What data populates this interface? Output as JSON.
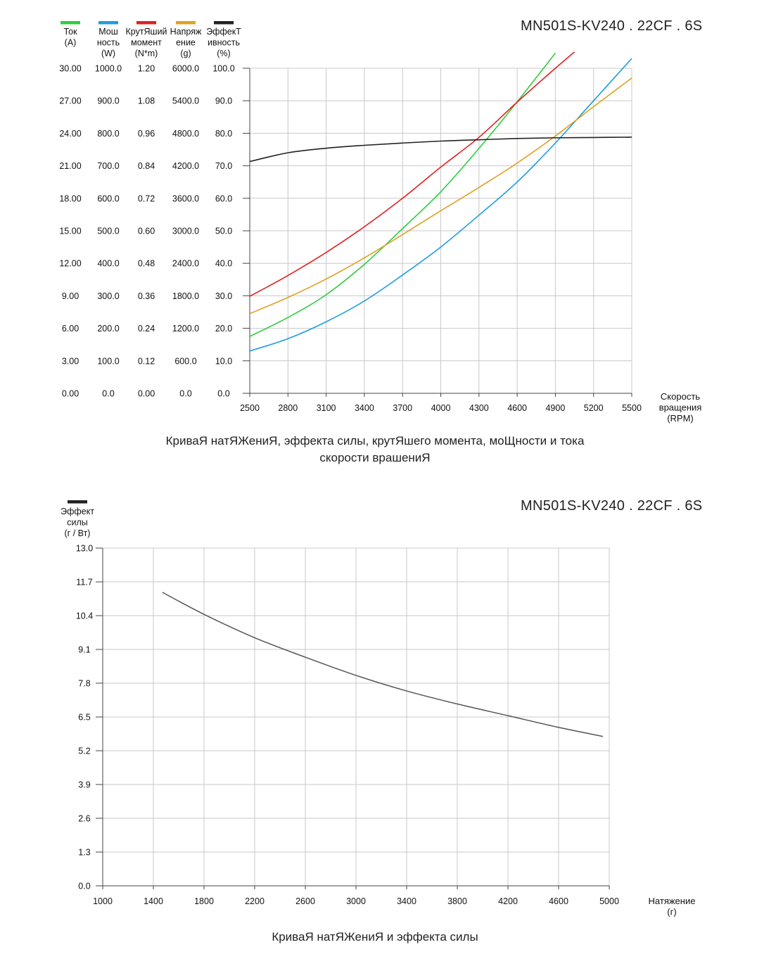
{
  "chart_data": [
    {
      "type": "line",
      "title": "MN501S-KV240 . 22CF . 6S",
      "caption_line1": "КриваЯ натЯЖениЯ, эффекта силы, крутЯшего момента, моЩности и тока",
      "caption_line2": "скорости врашениЯ",
      "xlabel": [
        "Скорость",
        "вращения",
        "(RPM)"
      ],
      "x_ticks": [
        "2500",
        "2800",
        "3100",
        "3400",
        "3700",
        "4000",
        "4300",
        "4600",
        "4900",
        "5200",
        "5500"
      ],
      "xlim": [
        2500,
        5500
      ],
      "grid": true,
      "axes": [
        {
          "name": [
            "Ток",
            "(A)"
          ],
          "color": "#2ecc40",
          "ticks": [
            "0.00",
            "3.00",
            "6.00",
            "9.00",
            "12.00",
            "15.00",
            "18.00",
            "21.00",
            "24.00",
            "27.00",
            "30.00"
          ],
          "ylim": [
            0,
            30
          ]
        },
        {
          "name": [
            "Мош",
            "ность",
            "(W)"
          ],
          "color": "#1e9be0",
          "ticks": [
            "0.0",
            "100.0",
            "200.0",
            "300.0",
            "400.0",
            "500.0",
            "600.0",
            "700.0",
            "800.0",
            "900.0",
            "1000.0"
          ],
          "ylim": [
            0,
            1000
          ]
        },
        {
          "name": [
            "КрутЯший",
            "момент",
            "(N*m)"
          ],
          "color": "#e02020",
          "ticks": [
            "0.00",
            "0.12",
            "0.24",
            "0.36",
            "0.48",
            "0.60",
            "0.72",
            "0.84",
            "0.96",
            "1.08",
            "1.20"
          ],
          "ylim": [
            0,
            1.2
          ]
        },
        {
          "name": [
            "Напряж",
            "ение",
            "(g)"
          ],
          "color": "#e0a020",
          "ticks": [
            "0.0",
            "600.0",
            "1200.0",
            "1800.0",
            "2400.0",
            "3000.0",
            "3600.0",
            "4200.0",
            "4800.0",
            "5400.0",
            "6000.0"
          ],
          "ylim": [
            0,
            6000
          ]
        },
        {
          "name": [
            "ЭффекТ",
            "ивность",
            "(%)"
          ],
          "color": "#222222",
          "ticks": [
            "0.0",
            "10.0",
            "20.0",
            "30.0",
            "40.0",
            "50.0",
            "60.0",
            "70.0",
            "80.0",
            "90.0",
            "100.0"
          ],
          "ylim": [
            0,
            100
          ]
        }
      ],
      "series": [
        {
          "name": "Ток (A)",
          "color": "#2ecc40",
          "axis": 0,
          "x": [
            2500,
            2800,
            3100,
            3400,
            3700,
            4000,
            4300,
            4600,
            4900
          ],
          "values": [
            5.25,
            7.0,
            9.1,
            11.9,
            15.2,
            18.6,
            22.6,
            26.9,
            31.4
          ]
        },
        {
          "name": "Мошность (W)",
          "color": "#1e9be0",
          "axis": 1,
          "x": [
            2500,
            2800,
            3100,
            3400,
            3700,
            4000,
            4300,
            4600,
            4900,
            5200,
            5500
          ],
          "values": [
            130,
            168,
            220,
            284,
            364,
            450,
            548,
            650,
            770,
            900,
            1030
          ]
        },
        {
          "name": "КрутЯший момент (N*m)",
          "color": "#e02020",
          "axis": 2,
          "x": [
            2500,
            2800,
            3100,
            3400,
            3700,
            4000,
            4300,
            4600,
            4900,
            5050
          ],
          "values": [
            0.358,
            0.435,
            0.52,
            0.615,
            0.72,
            0.835,
            0.945,
            1.075,
            1.2,
            1.26
          ]
        },
        {
          "name": "Напряжение (g)",
          "color": "#e0a020",
          "axis": 3,
          "x": [
            2500,
            2800,
            3100,
            3400,
            3700,
            4000,
            4300,
            4600,
            4900,
            5200,
            5500
          ],
          "values": [
            1470,
            1770,
            2110,
            2500,
            2930,
            3370,
            3800,
            4250,
            4750,
            5290,
            5820
          ]
        },
        {
          "name": "Эффективность (%)",
          "color": "#222222",
          "axis": 4,
          "x": [
            2500,
            2800,
            3100,
            3400,
            3700,
            4000,
            4300,
            4600,
            4900,
            5200,
            5500
          ],
          "values": [
            71.3,
            74.0,
            75.4,
            76.3,
            77.0,
            77.6,
            78.0,
            78.4,
            78.6,
            78.7,
            78.8
          ]
        }
      ]
    },
    {
      "type": "line",
      "title": "MN501S-KV240 . 22CF . 6S",
      "caption": "КриваЯ натЯЖениЯ и эффекта силы",
      "xlabel": [
        "Натяжение",
        "(г)"
      ],
      "ylabel": [
        "Эффект",
        "силы",
        "(г / Вт)"
      ],
      "x_ticks": [
        "1000",
        "1400",
        "1800",
        "2200",
        "2600",
        "3000",
        "3400",
        "3800",
        "4200",
        "4600",
        "5000"
      ],
      "y_ticks": [
        "0.0",
        "1.3",
        "2.6",
        "3.9",
        "5.2",
        "6.5",
        "7.8",
        "9.1",
        "10.4",
        "11.7",
        "13.0"
      ],
      "xlim": [
        1000,
        5000
      ],
      "ylim": [
        0,
        13
      ],
      "grid": true,
      "series": [
        {
          "name": "Эффект силы (г / Вт)",
          "color": "#555555",
          "x": [
            1470,
            1800,
            2200,
            2600,
            3000,
            3400,
            3800,
            4200,
            4600,
            4950
          ],
          "values": [
            11.3,
            10.45,
            9.55,
            8.8,
            8.1,
            7.5,
            7.0,
            6.55,
            6.1,
            5.75
          ]
        }
      ]
    }
  ]
}
